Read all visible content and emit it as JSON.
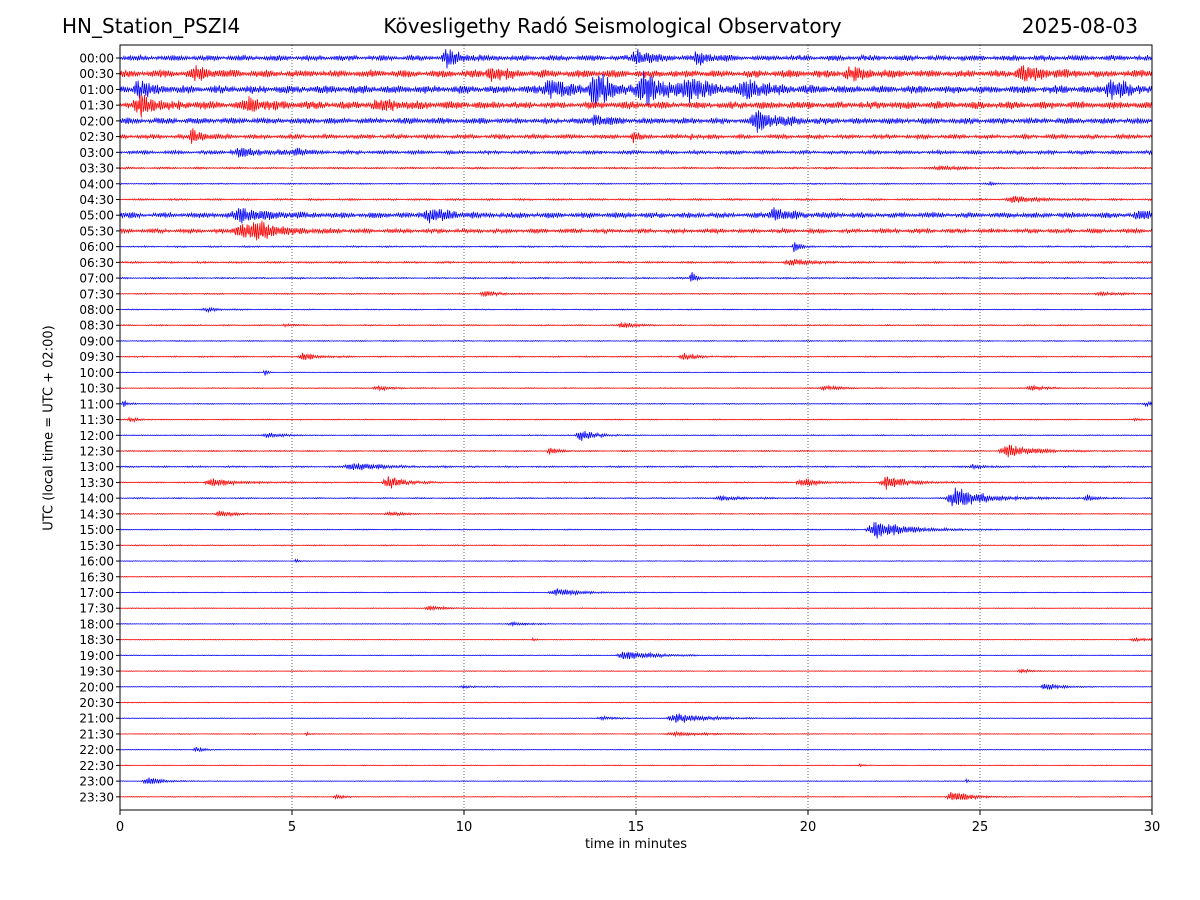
{
  "header": {
    "station": "HN_Station_PSZI4",
    "observatory": "Kövesligethy Radó Seismological Observatory",
    "date": "2025-08-03"
  },
  "chart_data": {
    "type": "line",
    "title": "Kövesligethy Radó Seismological Observatory",
    "xlabel": "time in minutes",
    "ylabel": "UTC (local time = UTC + 02:00)",
    "xlim": [
      0,
      30
    ],
    "x_ticks": [
      0,
      5,
      10,
      15,
      20,
      25,
      30
    ],
    "grid_x": true,
    "vertical_gridlines": [
      5,
      10,
      15,
      20,
      25
    ],
    "trace_colors": [
      "#0000ff",
      "#ff0000"
    ],
    "rows": [
      "00:00",
      "00:30",
      "01:00",
      "01:30",
      "02:00",
      "02:30",
      "03:00",
      "03:30",
      "04:00",
      "04:30",
      "05:00",
      "05:30",
      "06:00",
      "06:30",
      "07:00",
      "07:30",
      "08:00",
      "08:30",
      "09:00",
      "09:30",
      "10:00",
      "10:30",
      "11:00",
      "11:30",
      "12:00",
      "12:30",
      "13:00",
      "13:30",
      "14:00",
      "14:30",
      "15:00",
      "15:30",
      "16:00",
      "16:30",
      "17:00",
      "17:30",
      "18:00",
      "18:30",
      "19:00",
      "19:30",
      "20:00",
      "20:30",
      "21:00",
      "21:30",
      "22:00",
      "22:30",
      "23:00",
      "23:30"
    ],
    "noise_level": [
      0.45,
      0.6,
      0.65,
      0.6,
      0.5,
      0.35,
      0.3,
      0.15,
      0.1,
      0.15,
      0.45,
      0.35,
      0.12,
      0.15,
      0.12,
      0.1,
      0.08,
      0.1,
      0.08,
      0.1,
      0.06,
      0.08,
      0.08,
      0.08,
      0.08,
      0.1,
      0.12,
      0.1,
      0.1,
      0.08,
      0.08,
      0.08,
      0.06,
      0.06,
      0.06,
      0.06,
      0.06,
      0.06,
      0.06,
      0.06,
      0.06,
      0.06,
      0.06,
      0.06,
      0.06,
      0.06,
      0.06,
      0.06
    ],
    "events": [
      {
        "row": "00:00",
        "t": 9.5,
        "amp": 1.2,
        "dur": 0.6
      },
      {
        "row": "00:00",
        "t": 15.0,
        "amp": 1.3,
        "dur": 0.5
      },
      {
        "row": "00:00",
        "t": 16.8,
        "amp": 1.0,
        "dur": 0.5
      },
      {
        "row": "00:30",
        "t": 2.2,
        "amp": 0.8,
        "dur": 0.6
      },
      {
        "row": "00:30",
        "t": 10.8,
        "amp": 0.9,
        "dur": 0.6
      },
      {
        "row": "00:30",
        "t": 21.2,
        "amp": 0.9,
        "dur": 0.8
      },
      {
        "row": "00:30",
        "t": 26.2,
        "amp": 1.1,
        "dur": 0.8
      },
      {
        "row": "01:00",
        "t": 0.5,
        "amp": 1.3,
        "dur": 0.5
      },
      {
        "row": "01:00",
        "t": 12.5,
        "amp": 1.5,
        "dur": 0.8
      },
      {
        "row": "01:00",
        "t": 13.8,
        "amp": 3.0,
        "dur": 0.6
      },
      {
        "row": "01:00",
        "t": 15.2,
        "amp": 2.5,
        "dur": 0.8
      },
      {
        "row": "01:00",
        "t": 16.5,
        "amp": 1.6,
        "dur": 0.8
      },
      {
        "row": "01:00",
        "t": 18.2,
        "amp": 1.4,
        "dur": 0.8
      },
      {
        "row": "01:00",
        "t": 28.8,
        "amp": 1.4,
        "dur": 0.8
      },
      {
        "row": "01:30",
        "t": 0.6,
        "amp": 1.5,
        "dur": 0.8
      },
      {
        "row": "01:30",
        "t": 3.7,
        "amp": 1.0,
        "dur": 0.8
      },
      {
        "row": "01:30",
        "t": 7.5,
        "amp": 0.8,
        "dur": 0.8
      },
      {
        "row": "02:00",
        "t": 13.8,
        "amp": 1.0,
        "dur": 0.4
      },
      {
        "row": "02:00",
        "t": 18.5,
        "amp": 1.6,
        "dur": 0.8
      },
      {
        "row": "02:30",
        "t": 2.1,
        "amp": 1.2,
        "dur": 0.4
      },
      {
        "row": "02:30",
        "t": 14.9,
        "amp": 0.9,
        "dur": 0.2
      },
      {
        "row": "02:30",
        "t": 16.6,
        "amp": 0.5,
        "dur": 0.1
      },
      {
        "row": "03:00",
        "t": 3.5,
        "amp": 0.6,
        "dur": 1.2
      },
      {
        "row": "03:00",
        "t": 5.1,
        "amp": 0.7,
        "dur": 0.3
      },
      {
        "row": "03:30",
        "t": 23.8,
        "amp": 0.3,
        "dur": 0.8
      },
      {
        "row": "04:00",
        "t": 25.3,
        "amp": 0.3,
        "dur": 0.2
      },
      {
        "row": "04:30",
        "t": 26.0,
        "amp": 0.5,
        "dur": 1.0
      },
      {
        "row": "05:00",
        "t": 3.5,
        "amp": 1.0,
        "dur": 1.0
      },
      {
        "row": "05:00",
        "t": 9.0,
        "amp": 1.0,
        "dur": 0.8
      },
      {
        "row": "05:00",
        "t": 19.0,
        "amp": 1.0,
        "dur": 0.6
      },
      {
        "row": "05:00",
        "t": 29.6,
        "amp": 0.6,
        "dur": 0.6
      },
      {
        "row": "05:30",
        "t": 3.5,
        "amp": 1.0,
        "dur": 1.0
      },
      {
        "row": "05:30",
        "t": 4.0,
        "amp": 1.0,
        "dur": 1.0
      },
      {
        "row": "06:00",
        "t": 19.6,
        "amp": 1.1,
        "dur": 0.2
      },
      {
        "row": "06:30",
        "t": 19.5,
        "amp": 0.5,
        "dur": 0.8
      },
      {
        "row": "07:00",
        "t": 16.6,
        "amp": 1.1,
        "dur": 0.2
      },
      {
        "row": "07:30",
        "t": 10.6,
        "amp": 0.4,
        "dur": 0.6
      },
      {
        "row": "07:30",
        "t": 28.5,
        "amp": 0.3,
        "dur": 0.8
      },
      {
        "row": "08:00",
        "t": 2.5,
        "amp": 0.3,
        "dur": 0.6
      },
      {
        "row": "08:30",
        "t": 14.6,
        "amp": 0.5,
        "dur": 0.5
      },
      {
        "row": "08:30",
        "t": 4.8,
        "amp": 0.2,
        "dur": 0.4
      },
      {
        "row": "09:30",
        "t": 5.3,
        "amp": 0.6,
        "dur": 0.6
      },
      {
        "row": "09:30",
        "t": 16.4,
        "amp": 0.5,
        "dur": 0.6
      },
      {
        "row": "10:00",
        "t": 4.2,
        "amp": 0.7,
        "dur": 0.1
      },
      {
        "row": "10:30",
        "t": 7.5,
        "amp": 0.4,
        "dur": 0.6
      },
      {
        "row": "10:30",
        "t": 20.5,
        "amp": 0.4,
        "dur": 0.6
      },
      {
        "row": "10:30",
        "t": 26.5,
        "amp": 0.4,
        "dur": 0.6
      },
      {
        "row": "11:00",
        "t": 0.1,
        "amp": 0.6,
        "dur": 0.2
      },
      {
        "row": "11:00",
        "t": 29.8,
        "amp": 0.4,
        "dur": 0.3
      },
      {
        "row": "11:30",
        "t": 0.3,
        "amp": 0.4,
        "dur": 0.3
      },
      {
        "row": "11:30",
        "t": 29.5,
        "amp": 0.3,
        "dur": 0.2
      },
      {
        "row": "12:00",
        "t": 4.3,
        "amp": 0.4,
        "dur": 0.6
      },
      {
        "row": "12:00",
        "t": 13.4,
        "amp": 0.9,
        "dur": 0.6
      },
      {
        "row": "12:30",
        "t": 12.5,
        "amp": 0.5,
        "dur": 0.4
      },
      {
        "row": "12:30",
        "t": 25.8,
        "amp": 1.0,
        "dur": 1.0
      },
      {
        "row": "13:00",
        "t": 6.8,
        "amp": 0.6,
        "dur": 1.2
      },
      {
        "row": "13:00",
        "t": 24.8,
        "amp": 0.4,
        "dur": 0.4
      },
      {
        "row": "13:30",
        "t": 2.7,
        "amp": 0.6,
        "dur": 1.0
      },
      {
        "row": "13:30",
        "t": 7.8,
        "amp": 1.0,
        "dur": 0.7
      },
      {
        "row": "13:30",
        "t": 19.8,
        "amp": 0.8,
        "dur": 0.6
      },
      {
        "row": "13:30",
        "t": 22.3,
        "amp": 1.1,
        "dur": 0.8
      },
      {
        "row": "14:00",
        "t": 24.3,
        "amp": 1.6,
        "dur": 1.2
      },
      {
        "row": "14:00",
        "t": 28.1,
        "amp": 0.5,
        "dur": 0.4
      },
      {
        "row": "14:00",
        "t": 17.5,
        "amp": 0.3,
        "dur": 1.0
      },
      {
        "row": "14:30",
        "t": 2.9,
        "amp": 0.5,
        "dur": 0.6
      },
      {
        "row": "14:30",
        "t": 7.8,
        "amp": 0.4,
        "dur": 0.5
      },
      {
        "row": "15:00",
        "t": 22.0,
        "amp": 1.5,
        "dur": 1.2
      },
      {
        "row": "16:00",
        "t": 5.1,
        "amp": 0.4,
        "dur": 0.1
      },
      {
        "row": "17:00",
        "t": 12.7,
        "amp": 0.6,
        "dur": 1.0
      },
      {
        "row": "17:30",
        "t": 9.0,
        "amp": 0.4,
        "dur": 0.6
      },
      {
        "row": "18:00",
        "t": 11.4,
        "amp": 0.3,
        "dur": 0.6
      },
      {
        "row": "18:30",
        "t": 29.5,
        "amp": 0.3,
        "dur": 0.6
      },
      {
        "row": "18:30",
        "t": 12.0,
        "amp": 0.3,
        "dur": 0.1
      },
      {
        "row": "19:00",
        "t": 14.7,
        "amp": 0.8,
        "dur": 1.0
      },
      {
        "row": "19:30",
        "t": 26.2,
        "amp": 0.4,
        "dur": 0.4
      },
      {
        "row": "20:00",
        "t": 26.9,
        "amp": 0.6,
        "dur": 0.6
      },
      {
        "row": "20:00",
        "t": 10.0,
        "amp": 0.2,
        "dur": 0.6
      },
      {
        "row": "21:00",
        "t": 16.2,
        "amp": 0.8,
        "dur": 1.2
      },
      {
        "row": "21:00",
        "t": 14.0,
        "amp": 0.3,
        "dur": 0.6
      },
      {
        "row": "21:30",
        "t": 16.2,
        "amp": 0.3,
        "dur": 1.4
      },
      {
        "row": "21:30",
        "t": 5.4,
        "amp": 0.5,
        "dur": 0.1
      },
      {
        "row": "22:00",
        "t": 2.2,
        "amp": 0.5,
        "dur": 0.3
      },
      {
        "row": "22:30",
        "t": 21.5,
        "amp": 0.2,
        "dur": 0.2
      },
      {
        "row": "23:00",
        "t": 0.8,
        "amp": 0.6,
        "dur": 0.6
      },
      {
        "row": "23:00",
        "t": 24.6,
        "amp": 0.3,
        "dur": 0.1
      },
      {
        "row": "23:30",
        "t": 24.2,
        "amp": 0.9,
        "dur": 0.7
      },
      {
        "row": "23:30",
        "t": 6.3,
        "amp": 0.3,
        "dur": 0.4
      }
    ]
  }
}
